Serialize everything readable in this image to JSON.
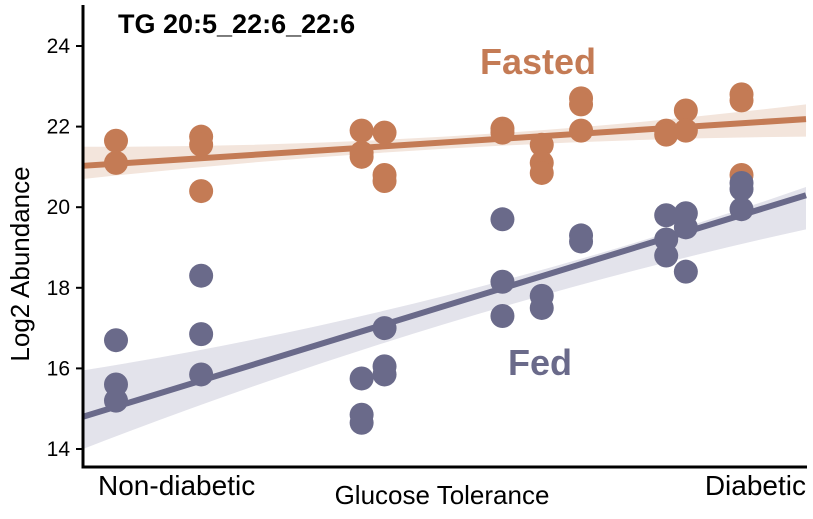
{
  "chart_data": {
    "type": "scatter",
    "title": "TG 20:5_22:6_22:6",
    "xlabel": "Glucose Tolerance",
    "ylabel": "Log2 Abundance",
    "x_range": [
      0,
      1
    ],
    "ylim": [
      13.6,
      25.0
    ],
    "y_ticks": [
      14,
      16,
      18,
      20,
      22,
      24
    ],
    "x_category_labels": [
      {
        "x": 0.0,
        "label": "Non-diabetic"
      },
      {
        "x": 1.0,
        "label": "Diabetic"
      }
    ],
    "grid": false,
    "legend": "none",
    "series": [
      {
        "name": "Fasted",
        "color": "#C47B55",
        "band_color": "#F3E5DC",
        "points": [
          {
            "x": 0.0,
            "y": 21.65
          },
          {
            "x": 0.0,
            "y": 21.1
          },
          {
            "x": 0.13,
            "y": 21.75
          },
          {
            "x": 0.13,
            "y": 21.55
          },
          {
            "x": 0.13,
            "y": 20.4
          },
          {
            "x": 0.375,
            "y": 21.9
          },
          {
            "x": 0.375,
            "y": 21.35
          },
          {
            "x": 0.375,
            "y": 21.25
          },
          {
            "x": 0.41,
            "y": 21.85
          },
          {
            "x": 0.41,
            "y": 20.8
          },
          {
            "x": 0.41,
            "y": 20.65
          },
          {
            "x": 0.59,
            "y": 21.95
          },
          {
            "x": 0.59,
            "y": 21.85
          },
          {
            "x": 0.65,
            "y": 21.55
          },
          {
            "x": 0.65,
            "y": 21.1
          },
          {
            "x": 0.65,
            "y": 20.85
          },
          {
            "x": 0.71,
            "y": 22.7
          },
          {
            "x": 0.71,
            "y": 22.55
          },
          {
            "x": 0.71,
            "y": 21.9
          },
          {
            "x": 0.84,
            "y": 21.9
          },
          {
            "x": 0.84,
            "y": 21.8
          },
          {
            "x": 0.87,
            "y": 22.4
          },
          {
            "x": 0.87,
            "y": 21.9
          },
          {
            "x": 0.955,
            "y": 22.8
          },
          {
            "x": 0.955,
            "y": 22.65
          },
          {
            "x": 0.955,
            "y": 20.8
          }
        ],
        "fit": {
          "y_start": 21.08,
          "y_end": 22.13
        },
        "ci": {
          "start": [
            20.7,
            21.5
          ],
          "mid": [
            21.45,
            21.75
          ],
          "end": [
            21.75,
            22.55
          ]
        }
      },
      {
        "name": "Fed",
        "color": "#6A6A8A",
        "band_color": "#E3E3EB",
        "points": [
          {
            "x": 0.0,
            "y": 16.7
          },
          {
            "x": 0.0,
            "y": 15.6
          },
          {
            "x": 0.0,
            "y": 15.2
          },
          {
            "x": 0.13,
            "y": 18.3
          },
          {
            "x": 0.13,
            "y": 16.85
          },
          {
            "x": 0.13,
            "y": 15.85
          },
          {
            "x": 0.375,
            "y": 15.75
          },
          {
            "x": 0.375,
            "y": 14.85
          },
          {
            "x": 0.375,
            "y": 14.65
          },
          {
            "x": 0.41,
            "y": 17.0
          },
          {
            "x": 0.41,
            "y": 16.05
          },
          {
            "x": 0.41,
            "y": 15.85
          },
          {
            "x": 0.59,
            "y": 19.7
          },
          {
            "x": 0.59,
            "y": 18.15
          },
          {
            "x": 0.59,
            "y": 17.3
          },
          {
            "x": 0.65,
            "y": 17.8
          },
          {
            "x": 0.65,
            "y": 17.5
          },
          {
            "x": 0.71,
            "y": 19.3
          },
          {
            "x": 0.71,
            "y": 19.15
          },
          {
            "x": 0.84,
            "y": 19.8
          },
          {
            "x": 0.84,
            "y": 19.2
          },
          {
            "x": 0.84,
            "y": 18.8
          },
          {
            "x": 0.87,
            "y": 19.85
          },
          {
            "x": 0.87,
            "y": 19.5
          },
          {
            "x": 0.87,
            "y": 18.4
          },
          {
            "x": 0.955,
            "y": 20.6
          },
          {
            "x": 0.955,
            "y": 20.45
          },
          {
            "x": 0.955,
            "y": 19.95
          }
        ],
        "fit": {
          "y_start": 15.05,
          "y_end": 20.03
        },
        "ci": {
          "start": [
            14.0,
            15.95
          ],
          "mid": [
            17.1,
            17.8
          ],
          "end": [
            19.45,
            20.5
          ]
        }
      }
    ]
  }
}
